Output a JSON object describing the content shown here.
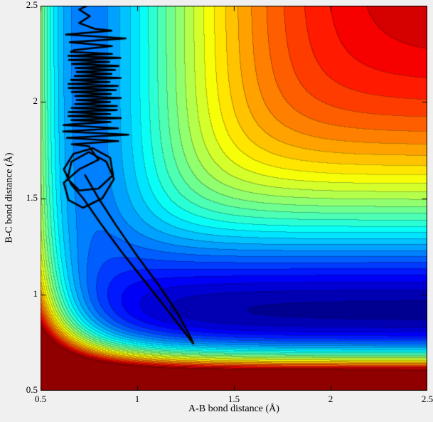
{
  "figure": {
    "bg_color": "#f0f0f0",
    "axis_color": "#000000"
  },
  "chart_data": {
    "type": "heatmap",
    "subtype": "filled_contour_with_trajectory",
    "title": "",
    "xlabel": "A-B bond distance (Å)",
    "ylabel": "B-C bond distance (Å)",
    "xlim": [
      0.5,
      2.5
    ],
    "ylim": [
      0.5,
      2.5
    ],
    "x_ticks": [
      0.5,
      1,
      1.5,
      2,
      2.5
    ],
    "x_tick_labels": [
      "0.5",
      "1",
      "1.5",
      "2",
      "2.5"
    ],
    "y_ticks": [
      0.5,
      1,
      1.5,
      2,
      2.5
    ],
    "y_tick_labels": [
      "0.5",
      "1",
      "1.5",
      "2",
      "2.5"
    ],
    "grid": false,
    "legend": "none",
    "colormap": "jet",
    "n_levels": 30,
    "v_range": [
      -6.25,
      0
    ],
    "contour_line_darken": 0.75,
    "surface_model": {
      "type": "LEPS",
      "description": "Collinear A-B-C potential energy surface; deep product valley along B-C ~0.92 A, shallower reactant valley along A-B ~0.74 A, high plateau upper-right, repulsive walls at small distances",
      "pairs": {
        "AB": {
          "D": 4.746,
          "a": 1.942,
          "r0": 0.742
        },
        "BC": {
          "D": 6.12,
          "a": 2.219,
          "r0": 0.917
        },
        "AC": {
          "D": 6.12,
          "a": 2.219,
          "r0": 0.917
        }
      },
      "sato": 0.167,
      "collinear": true
    },
    "trajectory": {
      "color": "#000000",
      "width": 2.6,
      "segments": [
        {
          "type": "polyline",
          "name": "entry-hairpin",
          "points": [
            [
              0.73,
              1.62
            ],
            [
              0.8,
              1.5
            ],
            [
              0.89,
              1.36
            ],
            [
              1.0,
              1.2
            ],
            [
              1.11,
              1.05
            ],
            [
              1.21,
              0.9
            ],
            [
              1.275,
              0.78
            ],
            [
              1.29,
              0.745
            ],
            [
              1.24,
              0.81
            ],
            [
              1.14,
              0.94
            ],
            [
              1.03,
              1.08
            ],
            [
              0.92,
              1.22
            ],
            [
              0.81,
              1.37
            ],
            [
              0.72,
              1.5
            ],
            [
              0.66,
              1.57
            ]
          ]
        },
        {
          "type": "polyline",
          "name": "loops",
          "points": [
            [
              0.62,
              1.65
            ],
            [
              0.67,
              1.73
            ],
            [
              0.77,
              1.76
            ],
            [
              0.86,
              1.71
            ],
            [
              0.875,
              1.62
            ],
            [
              0.8,
              1.55
            ],
            [
              0.7,
              1.54
            ],
            [
              0.64,
              1.6
            ],
            [
              0.66,
              1.69
            ],
            [
              0.75,
              1.74
            ],
            [
              0.84,
              1.69
            ],
            [
              0.88,
              1.6
            ],
            [
              0.82,
              1.5
            ],
            [
              0.72,
              1.45
            ],
            [
              0.645,
              1.49
            ],
            [
              0.62,
              1.58
            ],
            [
              0.7,
              1.65
            ],
            [
              0.8,
              1.7
            ],
            [
              0.75,
              1.77
            ]
          ]
        },
        {
          "type": "zigzag",
          "name": "climb-sparse",
          "y_from": 1.78,
          "y_to": 1.88,
          "half_cycles": 6,
          "x_left": 0.645,
          "x_right": 0.925,
          "jitter_left": 0.03,
          "jitter_right": 0.03
        },
        {
          "type": "zigzag",
          "name": "dense-vibration-band",
          "y_from": 1.885,
          "y_to": 2.26,
          "half_cycles": 36,
          "x_left": 0.665,
          "x_right": 0.885,
          "jitter_left": 0.022,
          "jitter_right": 0.03
        },
        {
          "type": "zigzag",
          "name": "upper-sparse",
          "y_from": 2.27,
          "y_to": 2.37,
          "half_cycles": 5,
          "x_left": 0.66,
          "x_right": 0.9,
          "jitter_left": 0.03,
          "jitter_right": 0.04
        },
        {
          "type": "polyline",
          "name": "exit-tail",
          "points": [
            [
              0.78,
              2.38
            ],
            [
              0.7,
              2.41
            ],
            [
              0.755,
              2.445
            ],
            [
              0.7,
              2.48
            ],
            [
              0.74,
              2.5
            ]
          ]
        }
      ]
    }
  }
}
